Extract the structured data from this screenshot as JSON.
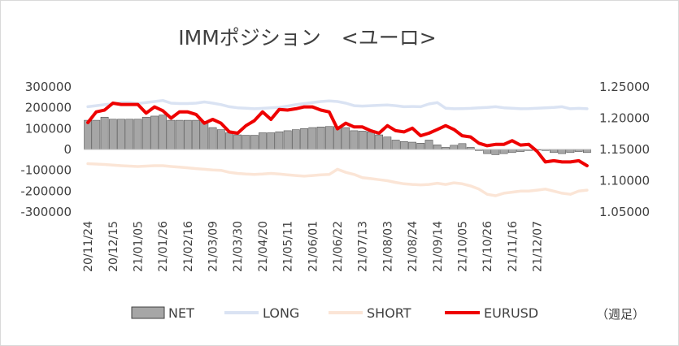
{
  "chart_data": {
    "type": "bar",
    "title": "IMMポジション　<ユーロ>",
    "unit_note": "（週足）",
    "x_tick_labels": [
      "20/11/24",
      "20/12/15",
      "21/01/05",
      "21/01/26",
      "21/02/16",
      "21/03/09",
      "21/03/30",
      "21/04/20",
      "21/05/11",
      "21/06/01",
      "21/06/22",
      "21/07/13",
      "21/08/03",
      "21/08/24",
      "21/09/14",
      "21/10/05",
      "21/10/26",
      "21/11/16",
      "21/12/07"
    ],
    "left_axis": {
      "ticks": [
        "300000",
        "200000",
        "100000",
        "0",
        "-100000",
        "-200000",
        "-300000"
      ],
      "ylim": [
        -300000,
        300000
      ]
    },
    "right_axis": {
      "ticks": [
        "1.25000",
        "1.20000",
        "1.15000",
        "1.10000",
        "1.05000"
      ],
      "ylim": [
        1.05,
        1.25
      ]
    },
    "grid": false,
    "legend_position": "bottom",
    "colors": {
      "NET_fill": "#a6a6a6",
      "NET_stroke": "#404040",
      "LONG": "#dae3f3",
      "SHORT": "#fbe5d6",
      "EURUSD": "#ee0000"
    },
    "series": [
      {
        "name": "NET",
        "kind": "bar",
        "axis": "left",
        "values": [
          140000,
          140000,
          155000,
          145000,
          145000,
          145000,
          145000,
          155000,
          160000,
          165000,
          140000,
          140000,
          140000,
          140000,
          135000,
          105000,
          95000,
          80000,
          70000,
          68000,
          68000,
          80000,
          80000,
          85000,
          90000,
          95000,
          100000,
          105000,
          108000,
          110000,
          110000,
          105000,
          90000,
          88000,
          85000,
          70000,
          60000,
          45000,
          38000,
          35000,
          30000,
          45000,
          22000,
          10000,
          20000,
          28000,
          10000,
          -5000,
          -20000,
          -25000,
          -20000,
          -15000,
          -10000,
          -5000,
          0,
          -5000,
          -15000,
          -20000,
          -15000,
          -10000,
          -15000
        ]
      },
      {
        "name": "LONG",
        "kind": "line",
        "axis": "left",
        "values": [
          205000,
          210000,
          215000,
          218000,
          225000,
          225000,
          220000,
          225000,
          230000,
          235000,
          222000,
          220000,
          220000,
          222000,
          228000,
          222000,
          215000,
          205000,
          200000,
          198000,
          195000,
          197000,
          200000,
          202000,
          208000,
          215000,
          220000,
          225000,
          230000,
          233000,
          230000,
          222000,
          210000,
          208000,
          210000,
          212000,
          213000,
          210000,
          205000,
          206000,
          205000,
          218000,
          225000,
          198000,
          195000,
          196000,
          197000,
          200000,
          202000,
          205000,
          200000,
          198000,
          195000,
          196000,
          198000,
          200000,
          202000,
          205000,
          195000,
          197000,
          195000
        ]
      },
      {
        "name": "SHORT",
        "kind": "line",
        "axis": "left",
        "values": [
          -68000,
          -70000,
          -72000,
          -75000,
          -78000,
          -80000,
          -82000,
          -80000,
          -78000,
          -78000,
          -82000,
          -85000,
          -88000,
          -92000,
          -95000,
          -98000,
          -100000,
          -110000,
          -115000,
          -118000,
          -120000,
          -118000,
          -115000,
          -118000,
          -122000,
          -125000,
          -128000,
          -125000,
          -122000,
          -120000,
          -95000,
          -110000,
          -120000,
          -135000,
          -140000,
          -145000,
          -150000,
          -158000,
          -165000,
          -168000,
          -170000,
          -168000,
          -162000,
          -168000,
          -160000,
          -165000,
          -175000,
          -190000,
          -215000,
          -222000,
          -210000,
          -205000,
          -200000,
          -200000,
          -195000,
          -190000,
          -200000,
          -210000,
          -215000,
          -200000,
          -195000
        ]
      },
      {
        "name": "EURUSD",
        "kind": "line",
        "axis": "right",
        "values": [
          1.193,
          1.21,
          1.213,
          1.224,
          1.222,
          1.222,
          1.222,
          1.208,
          1.218,
          1.212,
          1.2,
          1.21,
          1.21,
          1.206,
          1.192,
          1.198,
          1.192,
          1.178,
          1.176,
          1.188,
          1.196,
          1.21,
          1.198,
          1.214,
          1.213,
          1.215,
          1.218,
          1.218,
          1.213,
          1.21,
          1.183,
          1.192,
          1.186,
          1.186,
          1.18,
          1.176,
          1.188,
          1.18,
          1.178,
          1.184,
          1.172,
          1.176,
          1.182,
          1.188,
          1.182,
          1.172,
          1.17,
          1.16,
          1.156,
          1.158,
          1.158,
          1.164,
          1.157,
          1.158,
          1.147,
          1.13,
          1.132,
          1.13,
          1.13,
          1.132,
          1.124
        ]
      }
    ],
    "legend": [
      "NET",
      "LONG",
      "SHORT",
      "EURUSD"
    ]
  }
}
